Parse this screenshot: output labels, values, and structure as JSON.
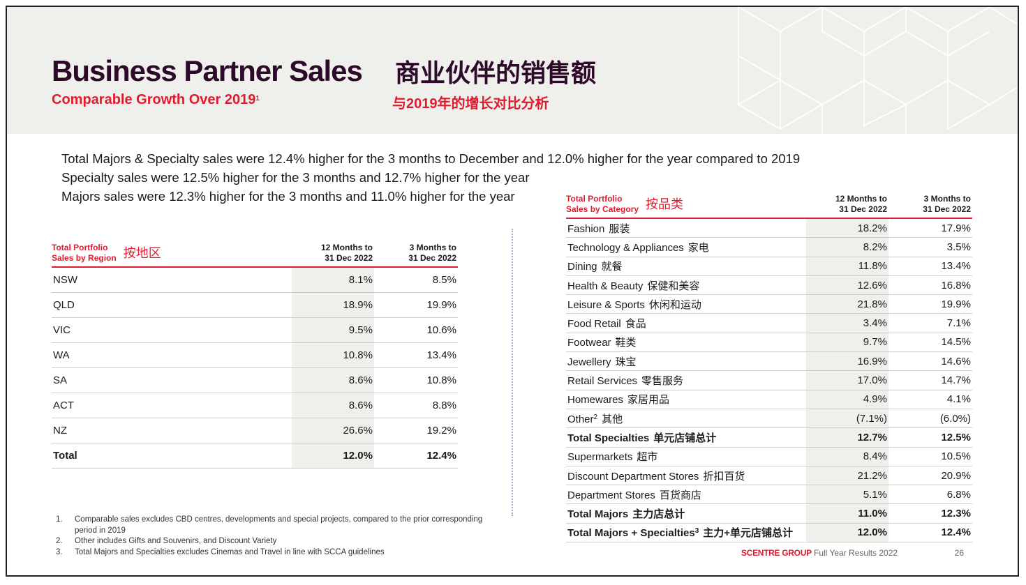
{
  "header": {
    "title": "Business Partner Sales",
    "title_cn": "商业伙伴的销售额",
    "subtitle": "Comparable Growth Over 2019",
    "subtitle_sup": "1",
    "subtitle_cn": "与2019年的增长对比分析"
  },
  "bullets": [
    "Total Majors & Specialty sales were 12.4% higher for the 3 months to December and 12.0% higher for the year compared to 2019",
    "Specialty sales were 12.5% higher for the 3 months and 12.7% higher for the year",
    "Majors sales were 12.3% higher for the 3 months and 11.0% higher for the year"
  ],
  "region_table": {
    "title_line1": "Total Portfolio",
    "title_line2": "Sales by Region",
    "title_cn": "按地区",
    "col1_line1": "12 Months to",
    "col1_line2": "31 Dec 2022",
    "col2_line1": "3 Months to",
    "col2_line2": "31 Dec 2022",
    "rows": [
      {
        "label": "NSW",
        "m12": "8.1%",
        "m3": "8.5%"
      },
      {
        "label": "QLD",
        "m12": "18.9%",
        "m3": "19.9%"
      },
      {
        "label": "VIC",
        "m12": "9.5%",
        "m3": "10.6%"
      },
      {
        "label": "WA",
        "m12": "10.8%",
        "m3": "13.4%"
      },
      {
        "label": "SA",
        "m12": "8.6%",
        "m3": "10.8%"
      },
      {
        "label": "ACT",
        "m12": "8.6%",
        "m3": "8.8%"
      },
      {
        "label": "NZ",
        "m12": "26.6%",
        "m3": "19.2%"
      },
      {
        "label": "Total",
        "m12": "12.0%",
        "m3": "12.4%"
      }
    ]
  },
  "category_table": {
    "title_line1": "Total Portfolio",
    "title_line2": "Sales by Category",
    "title_cn": "按品类",
    "col1_line1": "12 Months to",
    "col1_line2": "31 Dec 2022",
    "col2_line1": "3 Months to",
    "col2_line2": "31 Dec 2022",
    "rows": [
      {
        "label": "Fashion",
        "sup": "",
        "cn": "服装",
        "m12": "18.2%",
        "m3": "17.9%"
      },
      {
        "label": "Technology & Appliances",
        "sup": "",
        "cn": "家电",
        "m12": "8.2%",
        "m3": "3.5%"
      },
      {
        "label": "Dining",
        "sup": "",
        "cn": "就餐",
        "m12": "11.8%",
        "m3": "13.4%"
      },
      {
        "label": "Health & Beauty",
        "sup": "",
        "cn": "保健和美容",
        "m12": "12.6%",
        "m3": "16.8%"
      },
      {
        "label": "Leisure & Sports",
        "sup": "",
        "cn": "休闲和运动",
        "m12": "21.8%",
        "m3": "19.9%"
      },
      {
        "label": "Food Retail",
        "sup": "",
        "cn": "食品",
        "m12": "3.4%",
        "m3": "7.1%"
      },
      {
        "label": "Footwear",
        "sup": "",
        "cn": "鞋类",
        "m12": "9.7%",
        "m3": "14.5%"
      },
      {
        "label": "Jewellery",
        "sup": "",
        "cn": "珠宝",
        "m12": "16.9%",
        "m3": "14.6%"
      },
      {
        "label": "Retail Services",
        "sup": "",
        "cn": "零售服务",
        "m12": "17.0%",
        "m3": "14.7%"
      },
      {
        "label": "Homewares",
        "sup": "",
        "cn": "家居用品",
        "m12": "4.9%",
        "m3": "4.1%"
      },
      {
        "label": "Other",
        "sup": "2",
        "cn": "其他",
        "m12": "(7.1%)",
        "m3": "(6.0%)"
      },
      {
        "label": "Total Specialties",
        "sup": "",
        "cn": "单元店铺总计",
        "m12": "12.7%",
        "m3": "12.5%",
        "total": true
      },
      {
        "label": "Supermarkets",
        "sup": "",
        "cn": "超市",
        "m12": "8.4%",
        "m3": "10.5%"
      },
      {
        "label": "Discount Department Stores",
        "sup": "",
        "cn": "折扣百货",
        "m12": "21.2%",
        "m3": "20.9%"
      },
      {
        "label": "Department Stores",
        "sup": "",
        "cn": "百货商店",
        "m12": "5.1%",
        "m3": "6.8%"
      },
      {
        "label": "Total Majors",
        "sup": "",
        "cn": "主力店总计",
        "m12": "11.0%",
        "m3": "12.3%",
        "total": true
      },
      {
        "label": "Total Majors + Specialties",
        "sup": "3",
        "cn": "主力+单元店铺总计",
        "m12": "12.0%",
        "m3": "12.4%",
        "total": true
      }
    ]
  },
  "footnotes": [
    {
      "num": "1.",
      "text": "Comparable sales excludes CBD centres, developments and special projects, compared to the prior corresponding period in 2019"
    },
    {
      "num": "2.",
      "text": "Other includes Gifts and Souvenirs, and Discount Variety"
    },
    {
      "num": "3.",
      "text": "Total Majors and Specialties excludes Cinemas and Travel in line with SCCA guidelines"
    }
  ],
  "footer": {
    "brand": "SCENTRE GROUP",
    "text": "Full Year Results 2022",
    "page": "26"
  },
  "colors": {
    "title": "#2d0a2a",
    "accent_red": "#e01b2f",
    "header_bg": "#efefec",
    "shade": "#efefec"
  }
}
